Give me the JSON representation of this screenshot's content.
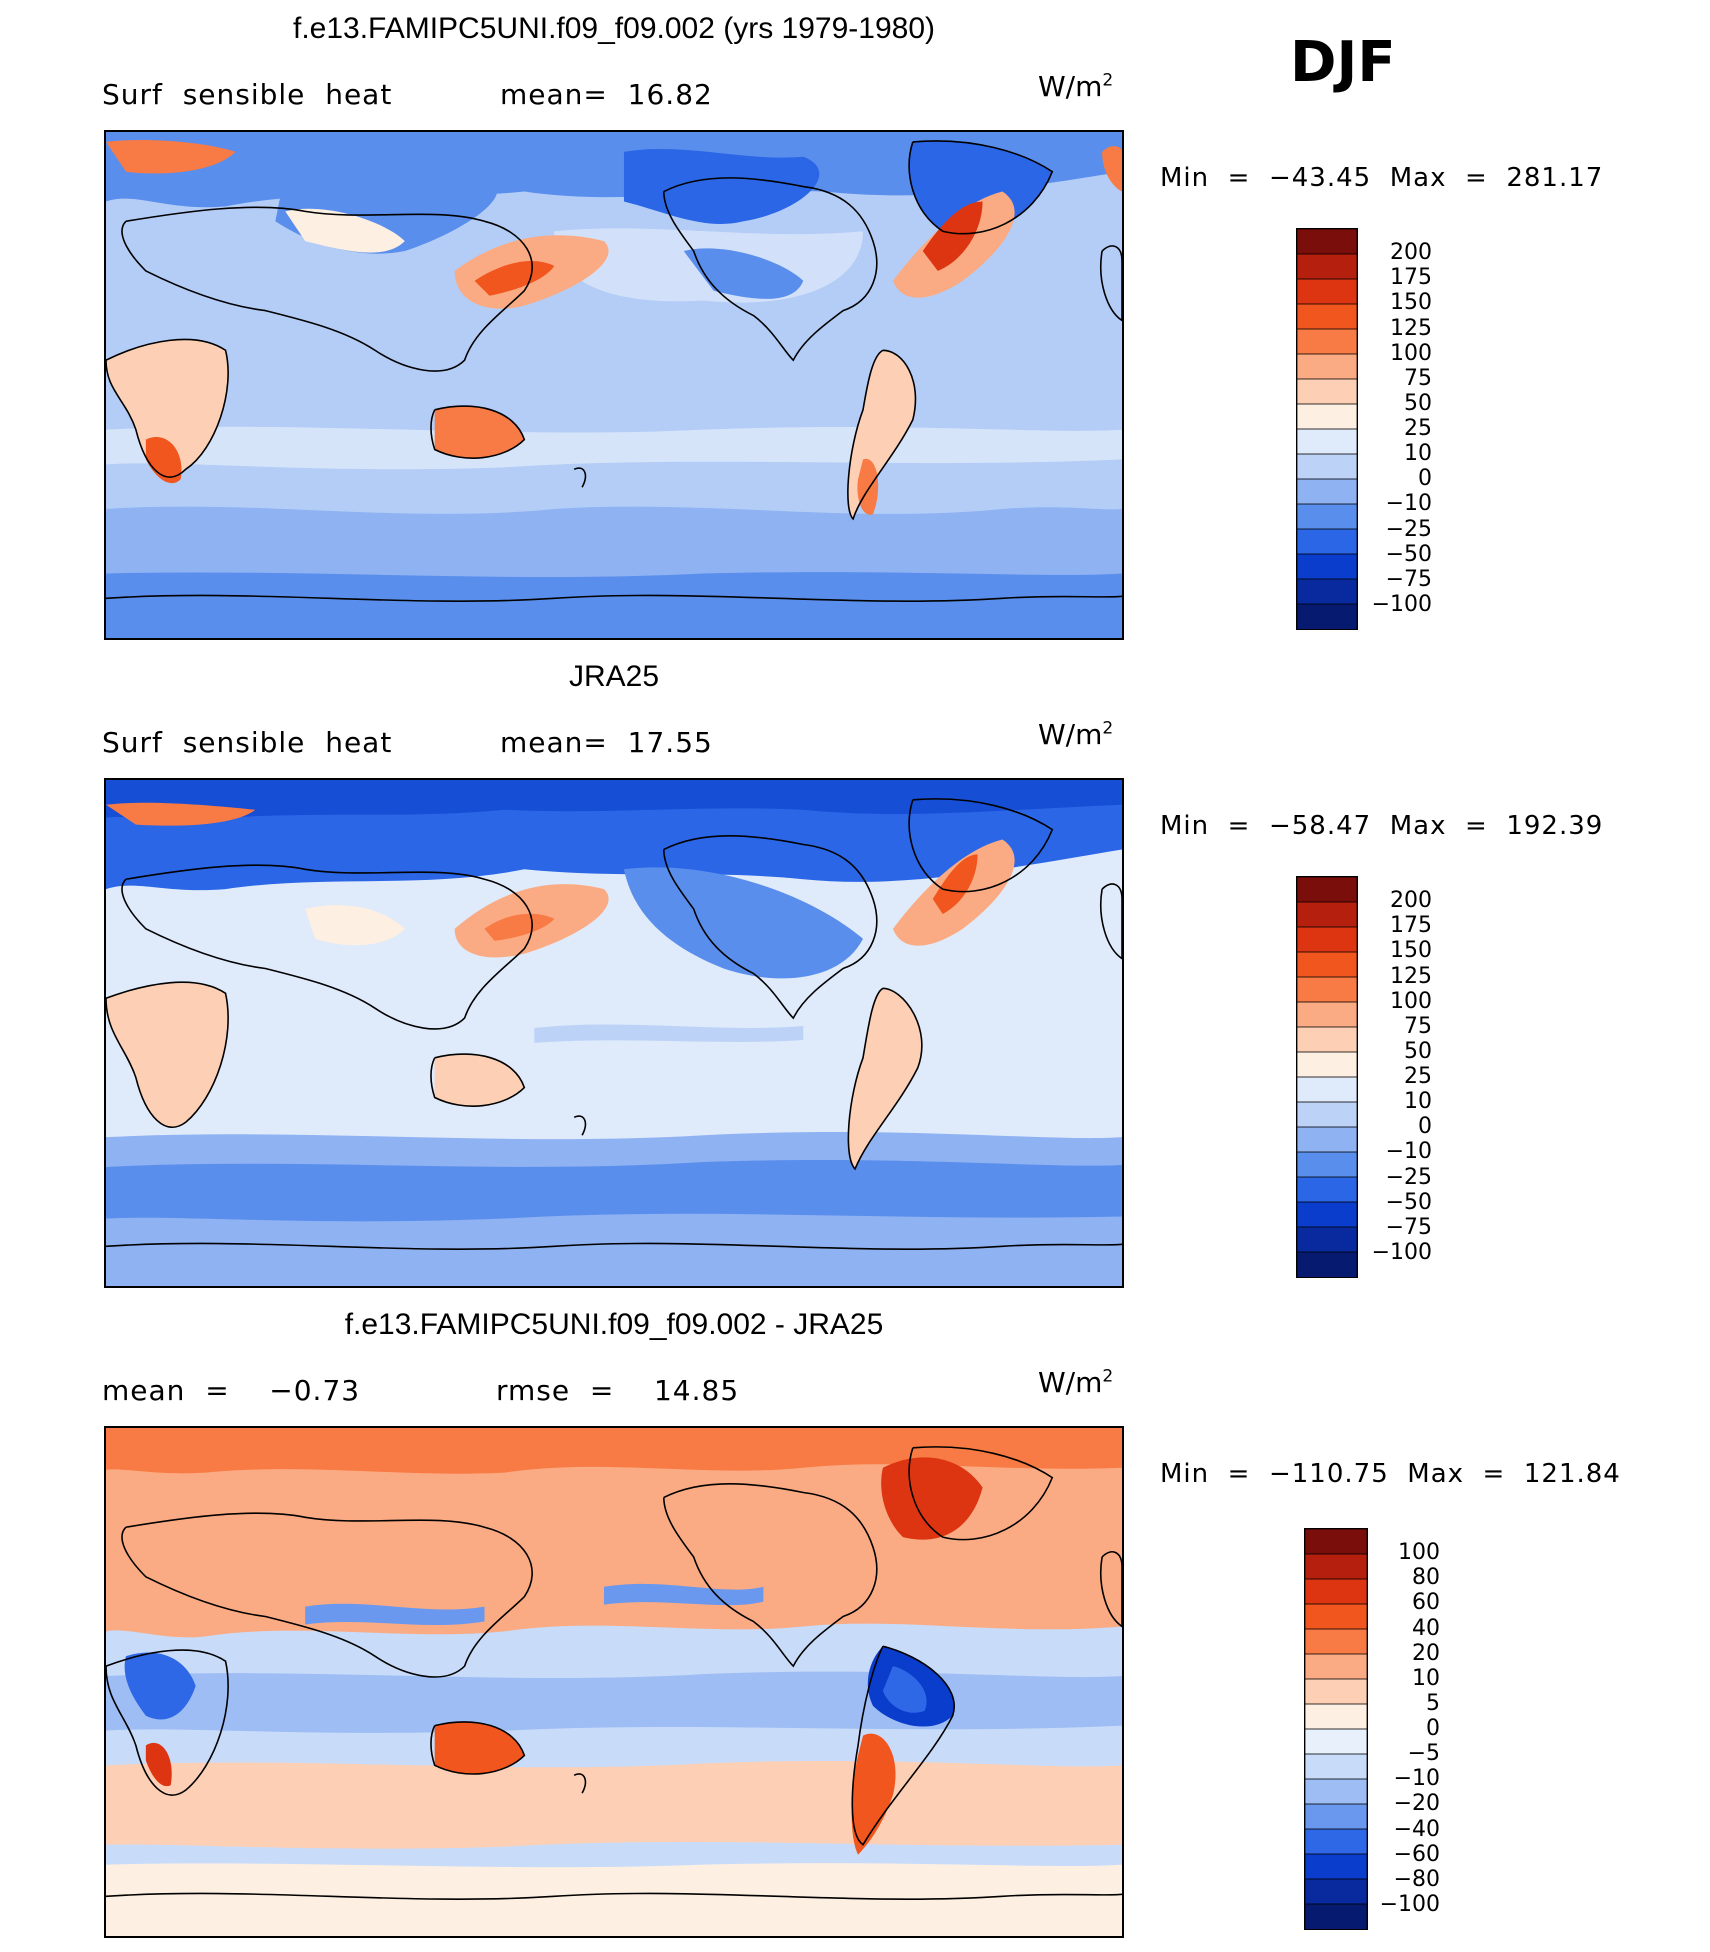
{
  "season": "DJF",
  "colors": {
    "ocean_base": "#b3cdf7",
    "land_warm": "#fde3cc",
    "coast": "#000000"
  },
  "panels": [
    {
      "title": "f.e13.FAMIPC5UNI.f09_f09.002 (yrs 1979-1980)",
      "left_label": "Surf  sensible  heat",
      "stat_label": "mean=  16.82",
      "units": "W/m",
      "units_sup": "2",
      "minmax": "Min  =  −43.45  Max  =  281.17",
      "colorbar": {
        "labels": [
          "200",
          "175",
          "150",
          "125",
          "100",
          "75",
          "50",
          "25",
          "10",
          "0",
          "−10",
          "−25",
          "−50",
          "−75",
          "−100"
        ],
        "colors": [
          "#7a0e0b",
          "#b51f0e",
          "#dd3512",
          "#f2561f",
          "#f87a44",
          "#fbab83",
          "#fdd0b6",
          "#fdefe2",
          "#dfeafa",
          "#bcd3f7",
          "#8fb2f2",
          "#5a8eec",
          "#2a66e6",
          "#0b3dcc",
          "#082a9e",
          "#061a70"
        ]
      }
    },
    {
      "title": "JRA25",
      "left_label": "Surf  sensible  heat",
      "stat_label": "mean=  17.55",
      "units": "W/m",
      "units_sup": "2",
      "minmax": "Min  =  −58.47  Max  =  192.39",
      "colorbar": {
        "labels": [
          "200",
          "175",
          "150",
          "125",
          "100",
          "75",
          "50",
          "25",
          "10",
          "0",
          "−10",
          "−25",
          "−50",
          "−75",
          "−100"
        ],
        "colors": [
          "#7a0e0b",
          "#b51f0e",
          "#dd3512",
          "#f2561f",
          "#f87a44",
          "#fbab83",
          "#fdd0b6",
          "#fdefe2",
          "#dfeafa",
          "#bcd3f7",
          "#8fb2f2",
          "#5a8eec",
          "#2a66e6",
          "#0b3dcc",
          "#082a9e",
          "#061a70"
        ]
      }
    },
    {
      "title": "f.e13.FAMIPC5UNI.f09_f09.002 - JRA25",
      "left_label": "mean  =    −0.73",
      "stat_label": "rmse  =    14.85",
      "units": "W/m",
      "units_sup": "2",
      "minmax": "Min  =  −110.75  Max  =  121.84",
      "colorbar": {
        "labels": [
          "100",
          "80",
          "60",
          "40",
          "20",
          "10",
          "5",
          "0",
          "−5",
          "−10",
          "−20",
          "−40",
          "−60",
          "−80",
          "−100"
        ],
        "colors": [
          "#7a0e0b",
          "#b51f0e",
          "#dd3512",
          "#f2561f",
          "#f87a44",
          "#fbab83",
          "#fdd0b6",
          "#fdefe2",
          "#e7f0fb",
          "#c8dbf8",
          "#9dbdf4",
          "#6a98ee",
          "#2f68e6",
          "#0b3dcc",
          "#082a9e",
          "#061a70"
        ]
      }
    }
  ]
}
